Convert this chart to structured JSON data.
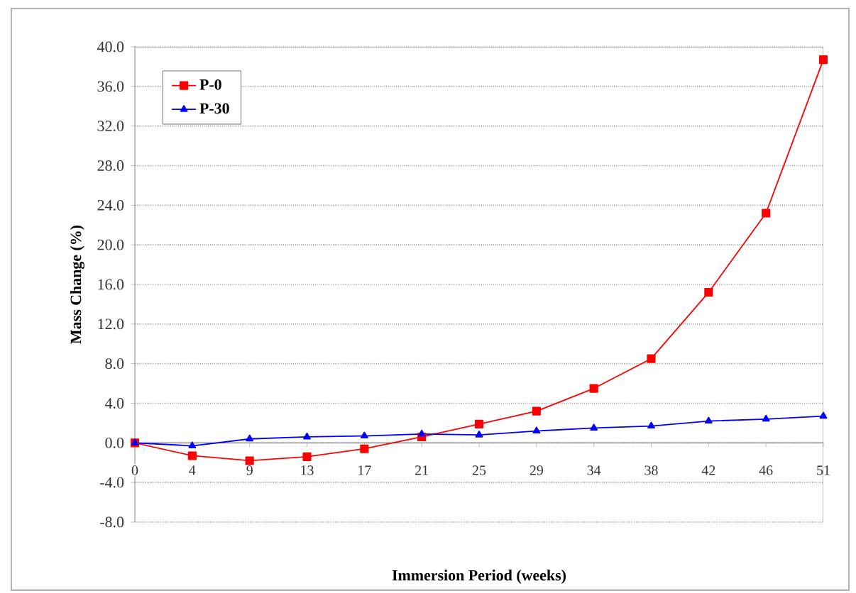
{
  "chart_data": {
    "type": "line",
    "xlabel": "Immersion Period (weeks)",
    "ylabel": "Mass Change (%)",
    "categories": [
      "0",
      "4",
      "9",
      "13",
      "17",
      "21",
      "25",
      "29",
      "34",
      "38",
      "42",
      "46",
      "51"
    ],
    "series": [
      {
        "name": "P-0",
        "color": "#ff0000",
        "marker": "square",
        "values": [
          0,
          -1.3,
          -1.8,
          -1.4,
          -0.6,
          0.6,
          1.9,
          3.2,
          5.5,
          8.5,
          15.2,
          23.2,
          38.7
        ]
      },
      {
        "name": "P-30",
        "color": "#0000ff",
        "marker": "triangle",
        "values": [
          0,
          -0.3,
          0.4,
          0.6,
          0.7,
          0.9,
          0.8,
          1.2,
          1.5,
          1.7,
          2.2,
          2.4,
          2.7
        ]
      }
    ],
    "ylim": [
      -8,
      40
    ],
    "yticks": [
      {
        "value": -8,
        "label": "-8.0"
      },
      {
        "value": -4,
        "label": "-4.0"
      },
      {
        "value": 0,
        "label": "0.0"
      },
      {
        "value": 4,
        "label": "4.0"
      },
      {
        "value": 8,
        "label": "8.0"
      },
      {
        "value": 12,
        "label": "12.0"
      },
      {
        "value": 16,
        "label": "16.0"
      },
      {
        "value": 20,
        "label": "20.0"
      },
      {
        "value": 24,
        "label": "24.0"
      },
      {
        "value": 28,
        "label": "28.0"
      },
      {
        "value": 32,
        "label": "32.0"
      },
      {
        "value": 36,
        "label": "36.0"
      },
      {
        "value": 40,
        "label": "40.0"
      }
    ],
    "grid": "y",
    "legend": "top left",
    "line_style": "solid"
  }
}
